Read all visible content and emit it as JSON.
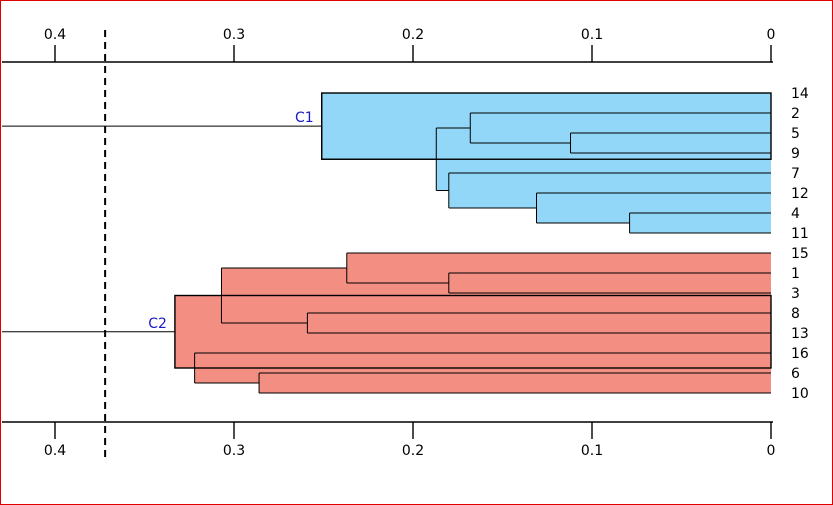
{
  "chart_data": {
    "type": "dendrogram",
    "orientation": "right-to-left",
    "axis": {
      "range": [
        0.43,
        0
      ],
      "ticks": [
        0.4,
        0.3,
        0.2,
        0.1,
        0
      ],
      "tick_labels": [
        "0.4",
        "0.3",
        "0.2",
        "0.1",
        "0"
      ],
      "positions": [
        "top",
        "bottom"
      ]
    },
    "cut_height": 0.372,
    "leaves": [
      "14",
      "2",
      "5",
      "9",
      "7",
      "12",
      "4",
      "11",
      "15",
      "1",
      "3",
      "8",
      "13",
      "16",
      "6",
      "10"
    ],
    "merges": [
      {
        "left": "5",
        "right": "9",
        "height": 0.112
      },
      {
        "left": "2",
        "right": "5+9",
        "height": 0.168
      },
      {
        "left": "4",
        "right": "11",
        "height": 0.079
      },
      {
        "left": "12",
        "right": "4+11",
        "height": 0.131
      },
      {
        "left": "7",
        "right": "12+4+11",
        "height": 0.18
      },
      {
        "left": "2+5+9",
        "right": "7+12+4+11",
        "height": 0.187
      },
      {
        "left": "14",
        "right": "2+5+9+7+12+4+11",
        "height": 0.251
      },
      {
        "left": "1",
        "right": "3",
        "height": 0.18
      },
      {
        "left": "15",
        "right": "1+3",
        "height": 0.237
      },
      {
        "left": "8",
        "right": "13",
        "height": 0.259
      },
      {
        "left": "15+1+3",
        "right": "8+13",
        "height": 0.307
      },
      {
        "left": "6",
        "right": "10",
        "height": 0.286
      },
      {
        "left": "16",
        "right": "6+10",
        "height": 0.322
      },
      {
        "left": "15+1+3+8+13",
        "right": "16+6+10",
        "height": 0.333
      }
    ],
    "clusters": [
      {
        "name": "C1",
        "members": [
          "14",
          "2",
          "5",
          "9",
          "7",
          "12",
          "4",
          "11"
        ],
        "height": 0.251,
        "color": "#92d7f8"
      },
      {
        "name": "C2",
        "members": [
          "15",
          "1",
          "3",
          "8",
          "13",
          "16",
          "6",
          "10"
        ],
        "height": 0.333,
        "color": "#f28e82"
      }
    ],
    "colors": {
      "cluster_label": "#1a1acc",
      "frame_border": "#e00000",
      "line": "#000000"
    }
  }
}
